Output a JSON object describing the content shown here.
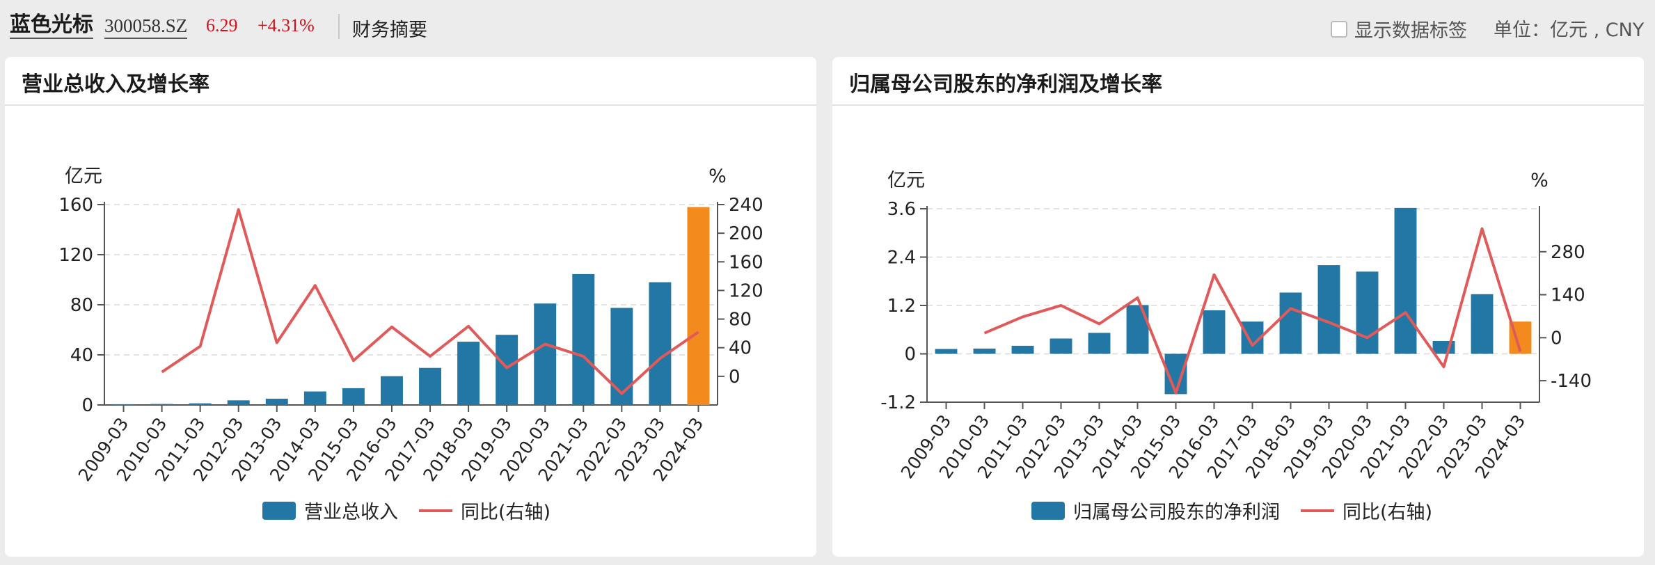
{
  "header": {
    "stock_name": "蓝色光标",
    "stock_code": "300058.SZ",
    "price": "6.29",
    "change": "+4.31%",
    "tab_label": "财务摘要",
    "show_labels_text": "显示数据标签",
    "unit_text": "单位：亿元 , CNY"
  },
  "colors": {
    "bar": "#2277a4",
    "bar_highlight": "#f28a1e",
    "line": "#e05a5a"
  },
  "chart_data": [
    {
      "type": "bar",
      "title": "营业总收入及增长率",
      "categories": [
        "2009-03",
        "2010-03",
        "2011-03",
        "2012-03",
        "2013-03",
        "2014-03",
        "2015-03",
        "2016-03",
        "2017-03",
        "2018-03",
        "2019-03",
        "2020-03",
        "2021-03",
        "2022-03",
        "2023-03",
        "2024-03"
      ],
      "series": [
        {
          "name": "营业总收入",
          "axis": "left",
          "type": "bar",
          "values": [
            0.6,
            0.8,
            1.3,
            3.7,
            5.0,
            10.8,
            13.4,
            23.0,
            29.6,
            50.5,
            56.0,
            81.0,
            104.5,
            77.5,
            98.0,
            158.0
          ]
        },
        {
          "name": "同比(右轴)",
          "axis": "right",
          "type": "line",
          "values": [
            null,
            6,
            42,
            233,
            47,
            127,
            22,
            69,
            28,
            70,
            12,
            45,
            28,
            -24,
            25,
            62
          ]
        }
      ],
      "ylabel_left": "亿元",
      "ylabel_right": "%",
      "ylim_left": [
        0,
        160
      ],
      "yticks_left": [
        0,
        40,
        80,
        120,
        160
      ],
      "ylim_right": [
        -40,
        240
      ],
      "yticks_right": [
        0,
        40,
        80,
        120,
        160,
        200,
        240
      ],
      "highlight_last_bar": true,
      "grid": true,
      "legend_position": "bottom-center"
    },
    {
      "type": "bar",
      "title": "归属母公司股东的净利润及增长率",
      "categories": [
        "2009-03",
        "2010-03",
        "2011-03",
        "2012-03",
        "2013-03",
        "2014-03",
        "2015-03",
        "2016-03",
        "2017-03",
        "2018-03",
        "2019-03",
        "2020-03",
        "2021-03",
        "2022-03",
        "2023-03",
        "2024-03"
      ],
      "series": [
        {
          "name": "归属母公司股东的净利润",
          "axis": "left",
          "type": "bar",
          "values": [
            0.12,
            0.13,
            0.2,
            0.38,
            0.52,
            1.21,
            -1.0,
            1.08,
            0.8,
            1.52,
            2.2,
            2.04,
            3.62,
            0.32,
            1.48,
            0.8
          ]
        },
        {
          "name": "同比(右轴)",
          "axis": "right",
          "type": "line",
          "values": [
            null,
            15,
            68,
            105,
            45,
            130,
            -180,
            205,
            -25,
            95,
            50,
            0,
            82,
            -95,
            355,
            -45
          ]
        }
      ],
      "ylabel_left": "亿元",
      "ylabel_right": "%",
      "ylim_left": [
        -1.2,
        3.6
      ],
      "yticks_left": [
        -1.2,
        0,
        1.2,
        2.4,
        3.6
      ],
      "ylim_right": [
        -210,
        420
      ],
      "yticks_right": [
        -140,
        0,
        140,
        280
      ],
      "highlight_last_bar": true,
      "grid": true,
      "legend_position": "bottom-center"
    }
  ]
}
